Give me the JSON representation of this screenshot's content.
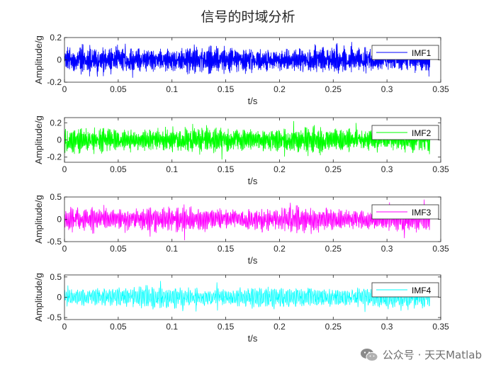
{
  "title": "信号的时域分析",
  "watermark": {
    "text": "公众号 · 天天Matlab",
    "icon": "wechat-icon"
  },
  "chart_data": [
    {
      "type": "line",
      "series": [
        {
          "name": "IMF1",
          "color": "#0000ff",
          "amplitude": 0.14,
          "peak_abs": 0.16
        }
      ],
      "xlabel": "t/s",
      "ylabel": "Amplitude/g",
      "xlim": [
        0,
        0.35
      ],
      "ylim": [
        -0.2,
        0.2
      ],
      "xticks": [
        0,
        0.05,
        0.1,
        0.15,
        0.2,
        0.25,
        0.3,
        0.35
      ],
      "xticklabels": [
        "0",
        "0.05",
        "0.1",
        "0.15",
        "0.2",
        "0.25",
        "0.3",
        "0.35"
      ],
      "yticks": [
        -0.2,
        0,
        0.2
      ],
      "yticklabels": [
        "-0.2",
        "0",
        "0.2"
      ],
      "t_range": [
        0,
        0.34
      ],
      "legend": "top-right",
      "grid": false
    },
    {
      "type": "line",
      "series": [
        {
          "name": "IMF2",
          "color": "#00ff00",
          "amplitude": 0.17,
          "peak_abs": 0.26
        }
      ],
      "xlabel": "t/s",
      "ylabel": "Amplitude/g",
      "xlim": [
        0,
        0.35
      ],
      "ylim": [
        -0.26,
        0.26
      ],
      "xticks": [
        0,
        0.05,
        0.1,
        0.15,
        0.2,
        0.25,
        0.3,
        0.35
      ],
      "xticklabels": [
        "0",
        "0.05",
        "0.1",
        "0.15",
        "0.2",
        "0.25",
        "0.3",
        "0.35"
      ],
      "yticks": [
        -0.2,
        0,
        0.2
      ],
      "yticklabels": [
        "-0.2",
        "0",
        "0.2"
      ],
      "t_range": [
        0,
        0.34
      ],
      "legend": "top-right",
      "grid": false
    },
    {
      "type": "line",
      "series": [
        {
          "name": "IMF3",
          "color": "#ff00ff",
          "amplitude": 0.32,
          "peak_abs": 0.48
        }
      ],
      "xlabel": "t/s",
      "ylabel": "Amplitude/g",
      "xlim": [
        0,
        0.35
      ],
      "ylim": [
        -0.5,
        0.5
      ],
      "xticks": [
        0,
        0.05,
        0.1,
        0.15,
        0.2,
        0.25,
        0.3,
        0.35
      ],
      "xticklabels": [
        "0",
        "0.05",
        "0.1",
        "0.15",
        "0.2",
        "0.25",
        "0.3",
        "0.35"
      ],
      "yticks": [
        -0.5,
        0,
        0.5
      ],
      "yticklabels": [
        "-0.5",
        "0",
        "0.5"
      ],
      "t_range": [
        0,
        0.34
      ],
      "legend": "top-right",
      "grid": false
    },
    {
      "type": "line",
      "series": [
        {
          "name": "IMF4",
          "color": "#00ffff",
          "amplitude": 0.3,
          "peak_abs": 0.52
        }
      ],
      "xlabel": "t/s",
      "ylabel": "Amplitude/g",
      "xlim": [
        0,
        0.35
      ],
      "ylim": [
        -0.55,
        0.55
      ],
      "xticks": [
        0,
        0.05,
        0.1,
        0.15,
        0.2,
        0.25,
        0.3,
        0.35
      ],
      "xticklabels": [
        "0",
        "0.05",
        "0.1",
        "0.15",
        "0.2",
        "0.25",
        "0.3",
        "0.35"
      ],
      "yticks": [
        -0.5,
        0,
        0.5
      ],
      "yticklabels": [
        "-0.5",
        "0",
        "0.5"
      ],
      "t_range": [
        0,
        0.34
      ],
      "legend": "top-right",
      "grid": false
    }
  ]
}
